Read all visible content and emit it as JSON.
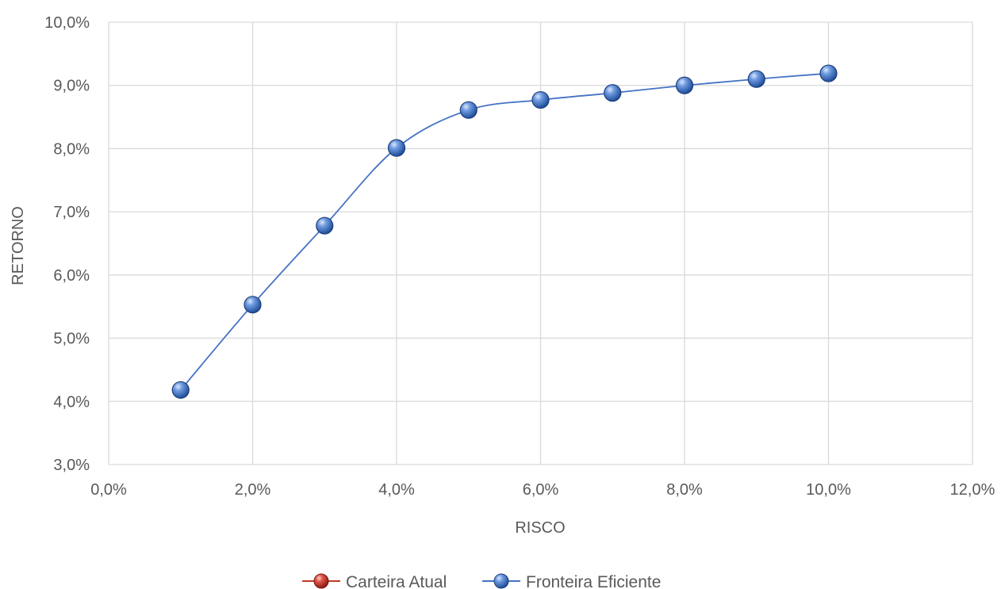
{
  "chart_data": {
    "type": "scatter",
    "xlabel": "RISCO",
    "ylabel": "RETORNO",
    "xlim": [
      0.0,
      0.12
    ],
    "ylim": [
      0.03,
      0.1
    ],
    "xticks": [
      0.0,
      0.02,
      0.04,
      0.06,
      0.08,
      0.1,
      0.12
    ],
    "yticks": [
      0.03,
      0.04,
      0.05,
      0.06,
      0.07,
      0.08,
      0.09,
      0.1
    ],
    "x_tick_labels": [
      "0,0%",
      "2,0%",
      "4,0%",
      "6,0%",
      "8,0%",
      "10,0%",
      "12,0%"
    ],
    "y_tick_labels": [
      "3,0%",
      "4,0%",
      "5,0%",
      "6,0%",
      "7,0%",
      "8,0%",
      "9,0%",
      "10,0%"
    ],
    "grid": true,
    "legend_position": "bottom",
    "series": [
      {
        "name": "Carteira Atual",
        "color": "#c0392b",
        "x": [],
        "y": []
      },
      {
        "name": "Fronteira Eficiente",
        "color": "#4472c4",
        "smooth": true,
        "x": [
          0.01,
          0.02,
          0.03,
          0.04,
          0.05,
          0.06,
          0.07,
          0.08,
          0.09,
          0.1
        ],
        "y": [
          0.0418,
          0.0553,
          0.0678,
          0.0801,
          0.0861,
          0.0877,
          0.0888,
          0.09,
          0.091,
          0.0919
        ]
      }
    ]
  }
}
